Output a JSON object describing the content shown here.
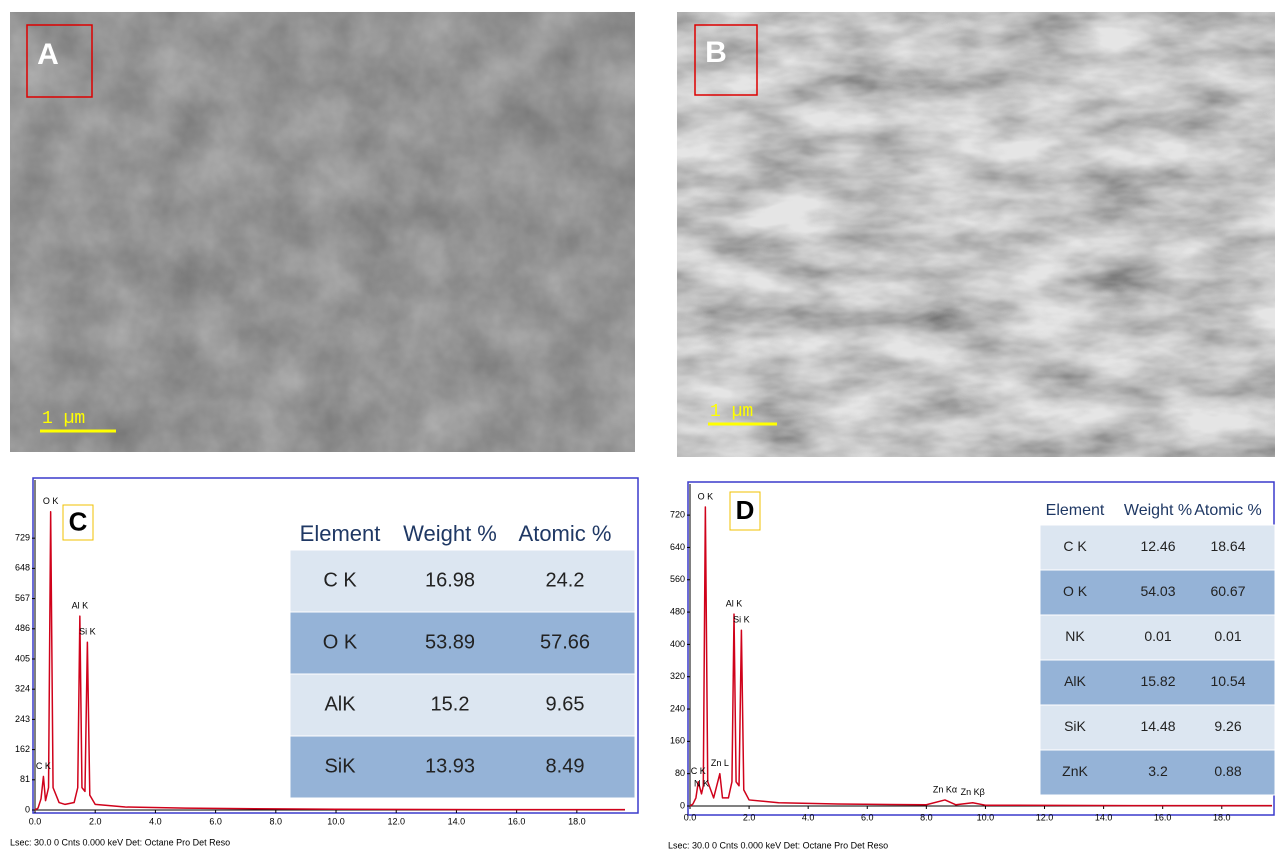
{
  "images": [
    {
      "label": "A",
      "scale_bar": "1 µm"
    },
    {
      "label": "B",
      "scale_bar": "1 µm"
    }
  ],
  "chart_data": [
    {
      "type": "line",
      "panel_label": "C",
      "color": "#d0021b",
      "x": [
        0,
        0.1,
        0.2,
        0.28,
        0.35,
        0.45,
        0.52,
        0.6,
        0.8,
        1.0,
        1.3,
        1.42,
        1.49,
        1.56,
        1.66,
        1.74,
        1.82,
        2.0,
        3,
        5,
        8,
        10,
        15,
        19.6
      ],
      "values": [
        0,
        5,
        30,
        90,
        25,
        60,
        800,
        60,
        20,
        15,
        20,
        60,
        520,
        60,
        50,
        450,
        40,
        15,
        8,
        5,
        3,
        2,
        1,
        1
      ],
      "xlim": [
        0,
        19.6
      ],
      "ylim": [
        0,
        885
      ],
      "xticks": [
        {
          "value": 0,
          "label": "0.0"
        },
        {
          "value": 2,
          "label": "2.0"
        },
        {
          "value": 4,
          "label": "4.0"
        },
        {
          "value": 6,
          "label": "6.0"
        },
        {
          "value": 8,
          "label": "8.0"
        },
        {
          "value": 10,
          "label": "10.0"
        },
        {
          "value": 12,
          "label": "12.0"
        },
        {
          "value": 14,
          "label": "14.0"
        },
        {
          "value": 16,
          "label": "16.0"
        },
        {
          "value": 18,
          "label": "18.0"
        }
      ],
      "yticks": [
        0,
        81,
        162,
        243,
        324,
        405,
        486,
        567,
        648,
        729
      ],
      "annotations": [
        {
          "text": "O K",
          "x": 0.52
        },
        {
          "text": "Al K",
          "x": 1.49
        },
        {
          "text": "Si K",
          "x": 1.74
        },
        {
          "text": "C K",
          "x": 0.28
        }
      ],
      "table": {
        "header": [
          "Element",
          "Weight %",
          "Atomic %"
        ],
        "rows": [
          [
            "C K",
            "16.98",
            "24.2"
          ],
          [
            "O K",
            "53.89",
            "57.66"
          ],
          [
            "AlK",
            "15.2",
            "9.65"
          ],
          [
            "SiK",
            "13.93",
            "8.49"
          ]
        ]
      },
      "footer": "Lsec: 30.0 0 Cnts  0.000 keV Det: Octane Pro Det     Reso"
    },
    {
      "type": "line",
      "panel_label": "D",
      "color": "#d0021b",
      "x": [
        0,
        0.1,
        0.2,
        0.28,
        0.39,
        0.45,
        0.52,
        0.6,
        0.8,
        1.01,
        1.1,
        1.3,
        1.42,
        1.49,
        1.56,
        1.66,
        1.74,
        1.82,
        2.0,
        3,
        5,
        8.0,
        8.63,
        9.0,
        9.57,
        10,
        15,
        19.7
      ],
      "values": [
        0,
        5,
        20,
        60,
        30,
        50,
        740,
        60,
        20,
        80,
        20,
        20,
        60,
        475,
        60,
        50,
        435,
        40,
        15,
        8,
        5,
        3,
        15,
        3,
        8,
        2,
        1,
        1
      ],
      "xlim": [
        0,
        19.7
      ],
      "ylim": [
        0,
        797
      ],
      "xticks": [
        {
          "value": 0,
          "label": "0.0"
        },
        {
          "value": 2,
          "label": "2.0"
        },
        {
          "value": 4,
          "label": "4.0"
        },
        {
          "value": 6,
          "label": "6.0"
        },
        {
          "value": 8,
          "label": "8.0"
        },
        {
          "value": 10,
          "label": "10.0"
        },
        {
          "value": 12,
          "label": "12.0"
        },
        {
          "value": 14,
          "label": "14.0"
        },
        {
          "value": 16,
          "label": "16.0"
        },
        {
          "value": 18,
          "label": "18.0"
        }
      ],
      "yticks": [
        0,
        80,
        160,
        240,
        320,
        400,
        480,
        560,
        640,
        720
      ],
      "annotations": [
        {
          "text": "O K",
          "x": 0.52
        },
        {
          "text": "Al K",
          "x": 1.49
        },
        {
          "text": "Si K",
          "x": 1.74
        },
        {
          "text": "Zn L",
          "x": 1.01
        },
        {
          "text": "C K",
          "x": 0.28
        },
        {
          "text": "N K",
          "x": 0.39
        },
        {
          "text": "Zn Kα",
          "x": 8.63
        },
        {
          "text": "Zn Kβ",
          "x": 9.57
        }
      ],
      "table": {
        "header": [
          "Element",
          "Weight %",
          "Atomic %"
        ],
        "rows": [
          [
            "C K",
            "12.46",
            "18.64"
          ],
          [
            "O K",
            "54.03",
            "60.67"
          ],
          [
            "NK",
            "0.01",
            "0.01"
          ],
          [
            "AlK",
            "15.82",
            "10.54"
          ],
          [
            "SiK",
            "14.48",
            "9.26"
          ],
          [
            "ZnK",
            "3.2",
            "0.88"
          ]
        ]
      },
      "footer": "Lsec: 30.0 0 Cnts  0.000 keV Det: Octane Pro Det     Reso"
    }
  ]
}
